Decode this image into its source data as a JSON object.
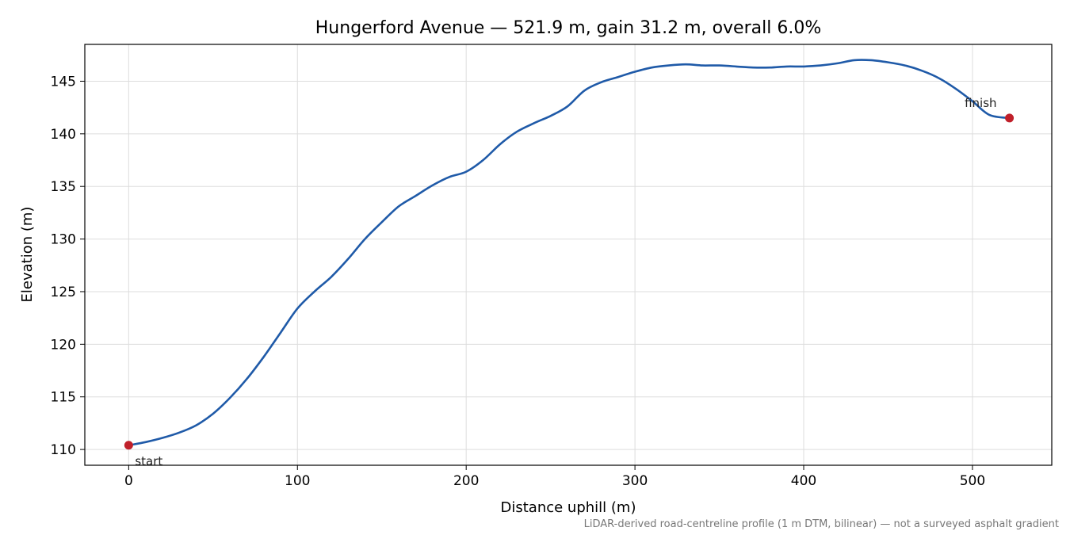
{
  "chart_data": {
    "type": "line",
    "title": "Hungerford Avenue — 521.9 m, gain 31.2 m, overall 6.0%",
    "xlabel": "Distance uphill (m)",
    "ylabel": "Elevation (m)",
    "xlim": [
      -26,
      547
    ],
    "ylim": [
      108.5,
      148.5
    ],
    "xticks": [
      0,
      100,
      200,
      300,
      400,
      500
    ],
    "yticks": [
      110,
      115,
      120,
      125,
      130,
      135,
      140,
      145
    ],
    "grid": true,
    "series": [
      {
        "color": "#1f5aa8",
        "x": [
          0,
          10,
          20,
          30,
          40,
          50,
          60,
          70,
          80,
          90,
          100,
          110,
          120,
          130,
          140,
          150,
          160,
          170,
          180,
          190,
          200,
          210,
          220,
          230,
          240,
          250,
          260,
          270,
          280,
          290,
          300,
          310,
          320,
          330,
          340,
          350,
          360,
          370,
          380,
          390,
          400,
          410,
          420,
          430,
          440,
          450,
          460,
          470,
          480,
          490,
          500,
          510,
          521.9
        ],
        "y": [
          110.4,
          110.7,
          111.1,
          111.6,
          112.3,
          113.4,
          114.9,
          116.7,
          118.8,
          121.1,
          123.4,
          125.0,
          126.4,
          128.1,
          130.0,
          131.6,
          133.1,
          134.1,
          135.1,
          135.9,
          136.4,
          137.5,
          139.0,
          140.2,
          141.0,
          141.7,
          142.6,
          144.1,
          144.9,
          145.4,
          145.9,
          146.3,
          146.5,
          146.6,
          146.5,
          146.5,
          146.4,
          146.3,
          146.3,
          146.4,
          146.4,
          146.5,
          146.7,
          147.0,
          147.0,
          146.8,
          146.5,
          146.0,
          145.3,
          144.3,
          143.1,
          141.8,
          141.5
        ]
      }
    ],
    "markers": [
      {
        "x": 0,
        "y": 110.4,
        "label": "start",
        "color": "#c0202a"
      },
      {
        "x": 521.9,
        "y": 141.5,
        "label": "finish",
        "color": "#c0202a"
      }
    ],
    "footnote": "LiDAR-derived road-centreline profile (1 m DTM, bilinear) — not a surveyed asphalt gradient"
  }
}
